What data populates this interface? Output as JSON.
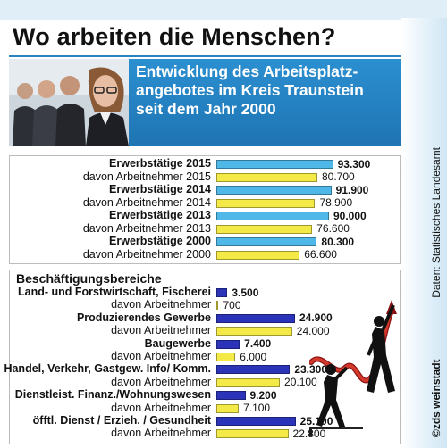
{
  "title": "Wo arbeiten die Menschen?",
  "subtitle_lines": [
    "Entwicklung des Arbeitsplatz-",
    "angebotes im Kreis Traunstein",
    "seit dem Jahr 2000"
  ],
  "source": "Daten: Statistisches Landesamt",
  "credit": "©zds weinstadt",
  "colors": {
    "blue_bar": "#4fb8e8",
    "yellow_bar": "#f3ea47",
    "navy_bar": "#2b34b8",
    "header_blue": "#2284c6"
  },
  "chart_data": [
    {
      "type": "bar",
      "orientation": "horizontal",
      "categories": [
        "Erwerbstätige 2015",
        "davon Arbeitnehmer 2015",
        "Erwerbstätige 2014",
        "davon Arbeitnehmer 2014",
        "Erwerbstätige 2013",
        "davon Arbeitnehmer 2013",
        "Erwerbstätige 2000",
        "davon Arbeitnehmer 2000"
      ],
      "values": [
        93300,
        80700,
        91900,
        78900,
        90000,
        76600,
        80300,
        66600
      ],
      "value_labels": [
        "93.300",
        "80.700",
        "91.900",
        "78.900",
        "90.000",
        "76.600",
        "80.300",
        "66.600"
      ],
      "bar_colors": [
        "#4fb8e8",
        "#f3ea47",
        "#4fb8e8",
        "#f3ea47",
        "#4fb8e8",
        "#f3ea47",
        "#4fb8e8",
        "#f3ea47"
      ],
      "bold": [
        true,
        false,
        true,
        false,
        true,
        false,
        true,
        false
      ],
      "xlim": [
        0,
        100000
      ]
    },
    {
      "type": "bar",
      "orientation": "horizontal",
      "title": "Beschäftigungsbereiche",
      "categories": [
        "Land- und Forstwirtschaft, Fischerei",
        "davon Arbeitnehmer",
        "Produzierendes Gewerbe",
        "davon Arbeitnehmer",
        "Baugewerbe",
        "davon Arbeitnehmer",
        "Handel, Verkehr, Gastgew. Info/ Komm.",
        "davon Arbeitnehmer",
        "Dienstleist. Finanz./Wohnungswesen",
        "davon Arbeitnehmer",
        "öfftl. Dienst / Erzieh. / Gesundheit",
        "davon Arbeitnehmer"
      ],
      "values": [
        3500,
        700,
        24900,
        24000,
        7400,
        6000,
        23300,
        20100,
        9200,
        7100,
        25100,
        22800
      ],
      "value_labels": [
        "3.500",
        "700",
        "24.900",
        "24.000",
        "7.400",
        "6.000",
        "23.300",
        "20.100",
        "9.200",
        "7.100",
        "25.100",
        "22.800"
      ],
      "bar_colors": [
        "#2b34b8",
        "#f3ea47",
        "#2b34b8",
        "#f3ea47",
        "#2b34b8",
        "#f3ea47",
        "#2b34b8",
        "#f3ea47",
        "#2b34b8",
        "#f3ea47",
        "#2b34b8",
        "#f3ea47"
      ],
      "bold": [
        true,
        false,
        true,
        false,
        true,
        false,
        true,
        false,
        true,
        false,
        true,
        false
      ],
      "xlim": [
        0,
        30000
      ]
    }
  ]
}
